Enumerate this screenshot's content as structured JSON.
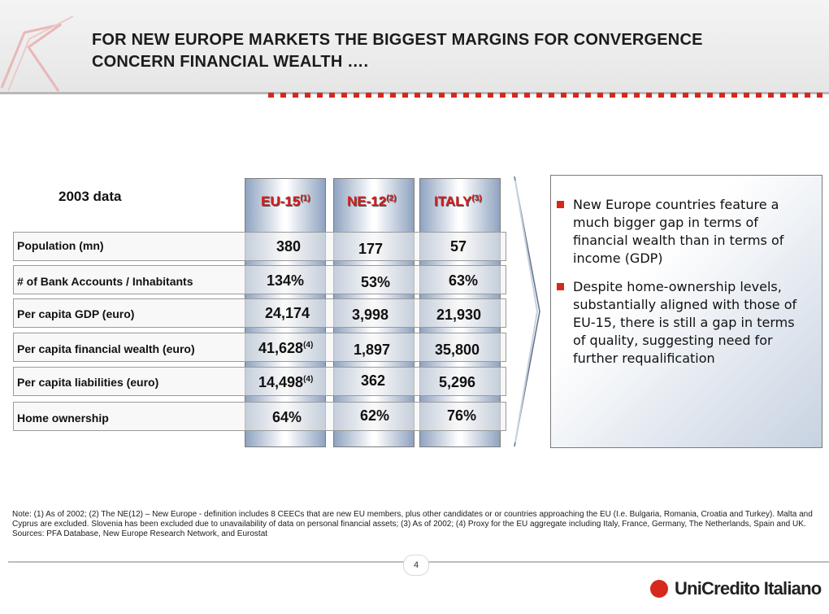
{
  "header": {
    "title_line1": "FOR NEW EUROPE MARKETS THE BIGGEST MARGINS FOR CONVERGENCE",
    "title_line2": "CONCERN FINANCIAL WEALTH ….",
    "accent_color": "#d6281c"
  },
  "table": {
    "data_label": "2003 data",
    "columns": [
      {
        "name": "EU-15",
        "note": "(1)"
      },
      {
        "name": "NE-12",
        "note": "(2)"
      },
      {
        "name": "ITALY",
        "note": "(3)"
      }
    ],
    "rows": [
      {
        "label": "Population (mn)",
        "values": [
          "380",
          "177",
          "57"
        ],
        "notes": [
          "",
          "",
          ""
        ]
      },
      {
        "label": "# of Bank Accounts / Inhabitants",
        "values": [
          "134%",
          "53%",
          "63%"
        ],
        "notes": [
          "",
          "",
          ""
        ]
      },
      {
        "label": "Per capita GDP (euro)",
        "values": [
          "24,174",
          "3,998",
          "21,930"
        ],
        "notes": [
          "",
          "",
          ""
        ]
      },
      {
        "label": "Per capita financial wealth (euro)",
        "values": [
          "41,628",
          "1,897",
          "35,800"
        ],
        "notes": [
          "(4)",
          "",
          ""
        ]
      },
      {
        "label": "Per capita liabilities (euro)",
        "values": [
          "14,498",
          "362",
          "5,296"
        ],
        "notes": [
          "(4)",
          "",
          ""
        ]
      },
      {
        "label": "Home ownership",
        "values": [
          "64%",
          "62%",
          "76%"
        ],
        "notes": [
          "",
          "",
          ""
        ]
      }
    ]
  },
  "bullets": [
    "New Europe countries feature a much bigger gap in terms of financial wealth than in terms of income (GDP)",
    "Despite home-ownership levels, substantially aligned with those of EU-15, there is still a gap in terms of quality, suggesting need for further requalification"
  ],
  "note": "Note: (1) As of 2002; (2) The NE(12) – New Europe - definition includes 8 CEECs that are new EU members, plus other candidates or or countries approaching the EU (I.e. Bulgaria, Romania, Croatia and Turkey). Malta and Cyprus are excluded. Slovenia has been excluded due to unavailability of data on personal financial assets; (3) As of 2002; (4) Proxy for the EU aggregate including Italy, France, Germany, The Netherlands, Spain and UK. Sources: PFA Database, New Europe Research Network, and Eurostat",
  "footer": {
    "page_number": "4",
    "brand": "UniCredito Italiano"
  }
}
